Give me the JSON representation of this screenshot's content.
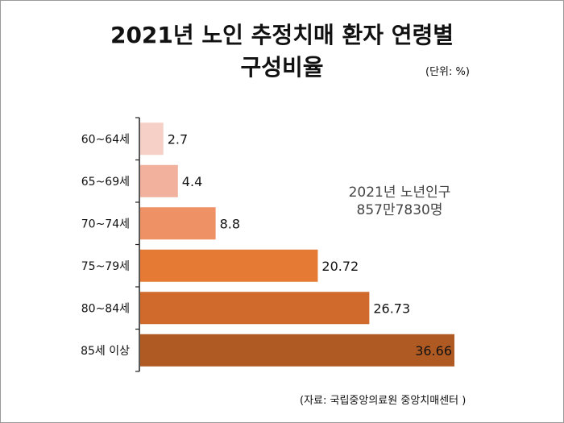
{
  "title_line1": "2021년 노인 추정치매 환자 연령별",
  "title_line2": "구성비율",
  "unit": "(단위: %)",
  "note_line1": "2021년 노년인구",
  "note_line2": "857만7830명",
  "source": "(자료: 국립중앙의료원 중앙치매센터 )",
  "chart_data": {
    "type": "bar",
    "orientation": "horizontal",
    "categories": [
      "60~64세",
      "65~69세",
      "70~74세",
      "75~79세",
      "80~84세",
      "85세 이상"
    ],
    "values": [
      2.7,
      4.4,
      8.8,
      20.72,
      26.73,
      36.66
    ],
    "value_labels": [
      "2.7",
      "4.4",
      "8.8",
      "20.72",
      "26.73",
      "36.66"
    ],
    "colors": [
      "#f6d0c6",
      "#f2b19d",
      "#ee9165",
      "#e47a33",
      "#cf692c",
      "#b05a23"
    ],
    "xlim": [
      0,
      36.66
    ],
    "grid": false,
    "legend": "none"
  }
}
